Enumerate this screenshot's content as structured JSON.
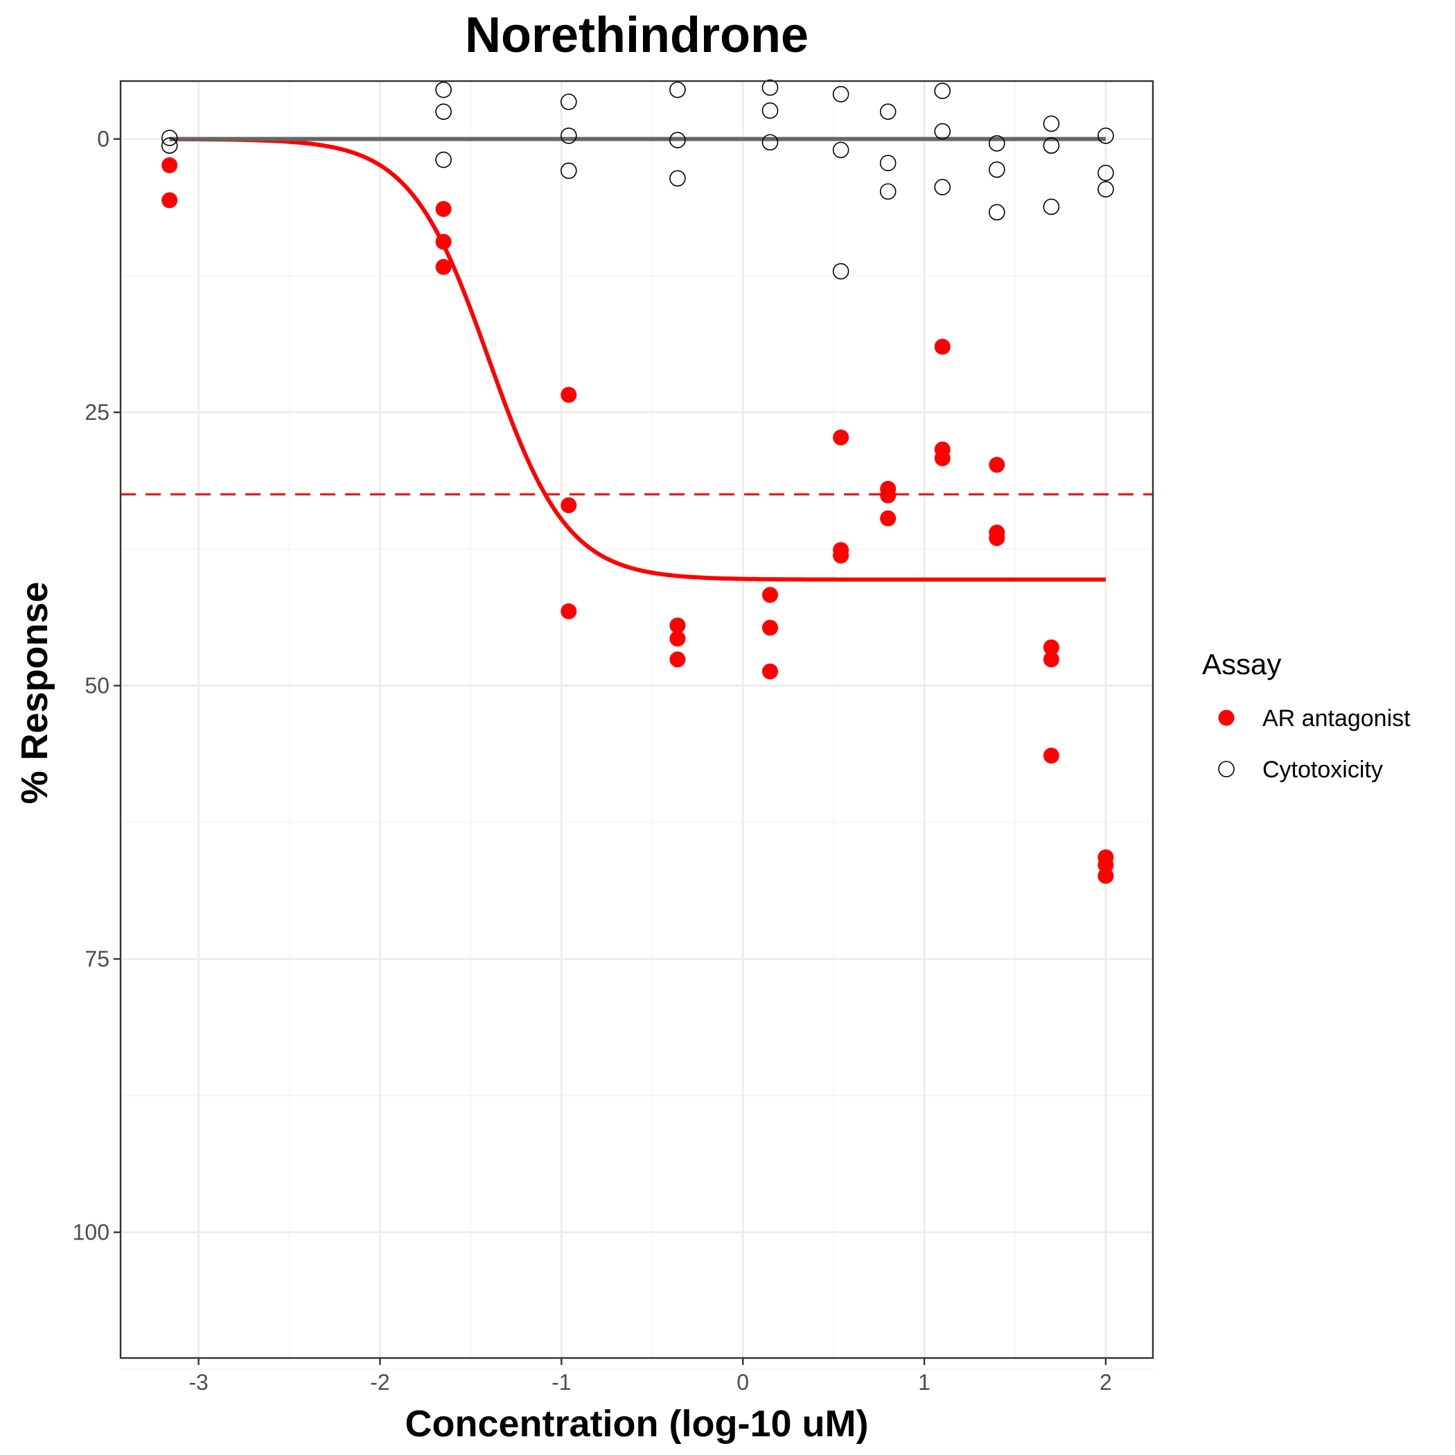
{
  "chart_data": {
    "type": "scatter",
    "title": "Norethindrone",
    "xlabel": "Concentration (log-10 uM)",
    "ylabel": "% Response",
    "xlim": [
      -3.43,
      2.26
    ],
    "ylim": [
      -5.3,
      111.5
    ],
    "y_reversed": true,
    "x_ticks": [
      -3,
      -2,
      -1,
      0,
      1,
      2
    ],
    "x_tick_labels": [
      "-3",
      "-2",
      "-1",
      "0",
      "1",
      "2"
    ],
    "y_ticks": [
      0,
      25,
      50,
      75,
      100
    ],
    "y_tick_labels": [
      "0",
      "25",
      "50",
      "75",
      "100"
    ],
    "grid": true,
    "legend": {
      "title": "Assay",
      "placement": "right",
      "entries": [
        {
          "label": "AR antagonist",
          "marker": "filled-circle",
          "color": "#ff0000"
        },
        {
          "label": "Cytotoxicity",
          "marker": "open-circle",
          "color": "#000000"
        }
      ]
    },
    "series": [
      {
        "name": "AR antagonist",
        "marker": "filled-circle",
        "color": "#ff0000",
        "points": [
          {
            "x": -3.16,
            "y": 2.4
          },
          {
            "x": -3.16,
            "y": 5.6
          },
          {
            "x": -1.65,
            "y": 6.4
          },
          {
            "x": -1.65,
            "y": 9.4
          },
          {
            "x": -1.65,
            "y": 11.7
          },
          {
            "x": -0.96,
            "y": 23.4
          },
          {
            "x": -0.96,
            "y": 33.5
          },
          {
            "x": -0.96,
            "y": 43.2
          },
          {
            "x": -0.36,
            "y": 44.5
          },
          {
            "x": -0.36,
            "y": 45.7
          },
          {
            "x": -0.36,
            "y": 47.6
          },
          {
            "x": 0.15,
            "y": 41.7
          },
          {
            "x": 0.15,
            "y": 44.7
          },
          {
            "x": 0.15,
            "y": 48.7
          },
          {
            "x": 0.54,
            "y": 27.3
          },
          {
            "x": 0.54,
            "y": 37.6
          },
          {
            "x": 0.54,
            "y": 38.1
          },
          {
            "x": 0.8,
            "y": 32.0
          },
          {
            "x": 0.8,
            "y": 32.6
          },
          {
            "x": 0.8,
            "y": 34.7
          },
          {
            "x": 1.1,
            "y": 19.0
          },
          {
            "x": 1.1,
            "y": 28.4
          },
          {
            "x": 1.1,
            "y": 29.2
          },
          {
            "x": 1.4,
            "y": 29.8
          },
          {
            "x": 1.4,
            "y": 36.0
          },
          {
            "x": 1.4,
            "y": 36.5
          },
          {
            "x": 1.7,
            "y": 46.5
          },
          {
            "x": 1.7,
            "y": 47.6
          },
          {
            "x": 1.7,
            "y": 56.4
          },
          {
            "x": 2.0,
            "y": 65.7
          },
          {
            "x": 2.0,
            "y": 66.4
          },
          {
            "x": 2.0,
            "y": 67.4
          }
        ]
      },
      {
        "name": "Cytotoxicity",
        "marker": "open-circle",
        "color": "#000000",
        "points": [
          {
            "x": -3.16,
            "y": -0.1
          },
          {
            "x": -3.16,
            "y": 0.6
          },
          {
            "x": -1.65,
            "y": -4.5
          },
          {
            "x": -1.65,
            "y": -2.5
          },
          {
            "x": -1.65,
            "y": 1.9
          },
          {
            "x": -0.96,
            "y": -3.4
          },
          {
            "x": -0.96,
            "y": -0.3
          },
          {
            "x": -0.96,
            "y": 2.9
          },
          {
            "x": -0.36,
            "y": -4.5
          },
          {
            "x": -0.36,
            "y": 0.1
          },
          {
            "x": -0.36,
            "y": 3.6
          },
          {
            "x": 0.15,
            "y": -4.7
          },
          {
            "x": 0.15,
            "y": -2.6
          },
          {
            "x": 0.15,
            "y": 0.3
          },
          {
            "x": 0.54,
            "y": -4.1
          },
          {
            "x": 0.54,
            "y": 1.0
          },
          {
            "x": 0.54,
            "y": 12.1
          },
          {
            "x": 0.8,
            "y": -2.5
          },
          {
            "x": 0.8,
            "y": 2.2
          },
          {
            "x": 0.8,
            "y": 4.8
          },
          {
            "x": 1.1,
            "y": -4.4
          },
          {
            "x": 1.1,
            "y": -0.7
          },
          {
            "x": 1.1,
            "y": 4.4
          },
          {
            "x": 1.4,
            "y": 0.4
          },
          {
            "x": 1.4,
            "y": 2.8
          },
          {
            "x": 1.4,
            "y": 6.7
          },
          {
            "x": 1.7,
            "y": -1.4
          },
          {
            "x": 1.7,
            "y": 0.6
          },
          {
            "x": 1.7,
            "y": 6.2
          },
          {
            "x": 2.0,
            "y": -0.3
          },
          {
            "x": 2.0,
            "y": 3.1
          },
          {
            "x": 2.0,
            "y": 4.6
          }
        ]
      }
    ],
    "curves": [
      {
        "name": "AR antagonist fit",
        "color": "#ff0000",
        "style": "solid",
        "type": "hill",
        "top": 40.3,
        "ac50_log": -1.4,
        "hill_slope": 2.0,
        "x_range": [
          -3.16,
          2.0
        ]
      },
      {
        "name": "Cytotoxicity fit",
        "color": "#666666",
        "style": "solid",
        "type": "constant",
        "value": 0,
        "x_range": [
          -3.16,
          2.0
        ]
      }
    ],
    "reference_lines": [
      {
        "orientation": "horizontal",
        "y": 32.5,
        "color": "#ff0000",
        "style": "dashed"
      }
    ]
  }
}
